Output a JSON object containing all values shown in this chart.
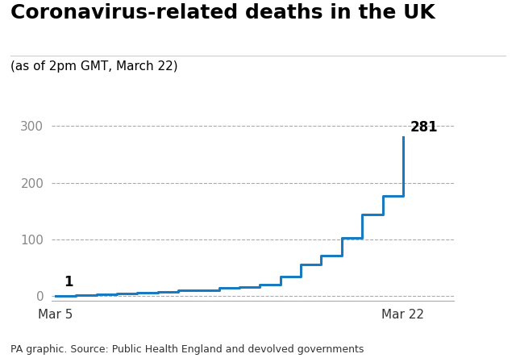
{
  "title": "Coronavirus-related deaths in the UK",
  "subtitle": "(as of 2pm GMT, March 22)",
  "caption": "PA graphic. Source: Public Health England and devolved governments",
  "line_color": "#1a7abf",
  "line_width": 2.2,
  "background_color": "#ffffff",
  "dates": [
    0,
    1,
    2,
    3,
    4,
    5,
    6,
    7,
    8,
    9,
    10,
    11,
    12,
    13,
    14,
    15,
    16,
    17
  ],
  "values": [
    1,
    2,
    3,
    5,
    6,
    8,
    10,
    11,
    14,
    16,
    21,
    35,
    56,
    72,
    103,
    144,
    177,
    281
  ],
  "x_tick_labels": [
    "Mar 5",
    "Mar 22"
  ],
  "x_tick_positions": [
    0,
    17
  ],
  "y_ticks": [
    0,
    100,
    200,
    300
  ],
  "ylim": [
    -8,
    320
  ],
  "xlim": [
    -0.2,
    19.5
  ],
  "first_label": "1",
  "last_label": "281",
  "title_fontsize": 18,
  "subtitle_fontsize": 11,
  "caption_fontsize": 9,
  "tick_fontsize": 11,
  "annotation_fontsize": 12,
  "ytick_color": "#888888",
  "xtick_color": "#333333",
  "grid_color": "#aaaaaa",
  "title_line_color": "#cccccc"
}
